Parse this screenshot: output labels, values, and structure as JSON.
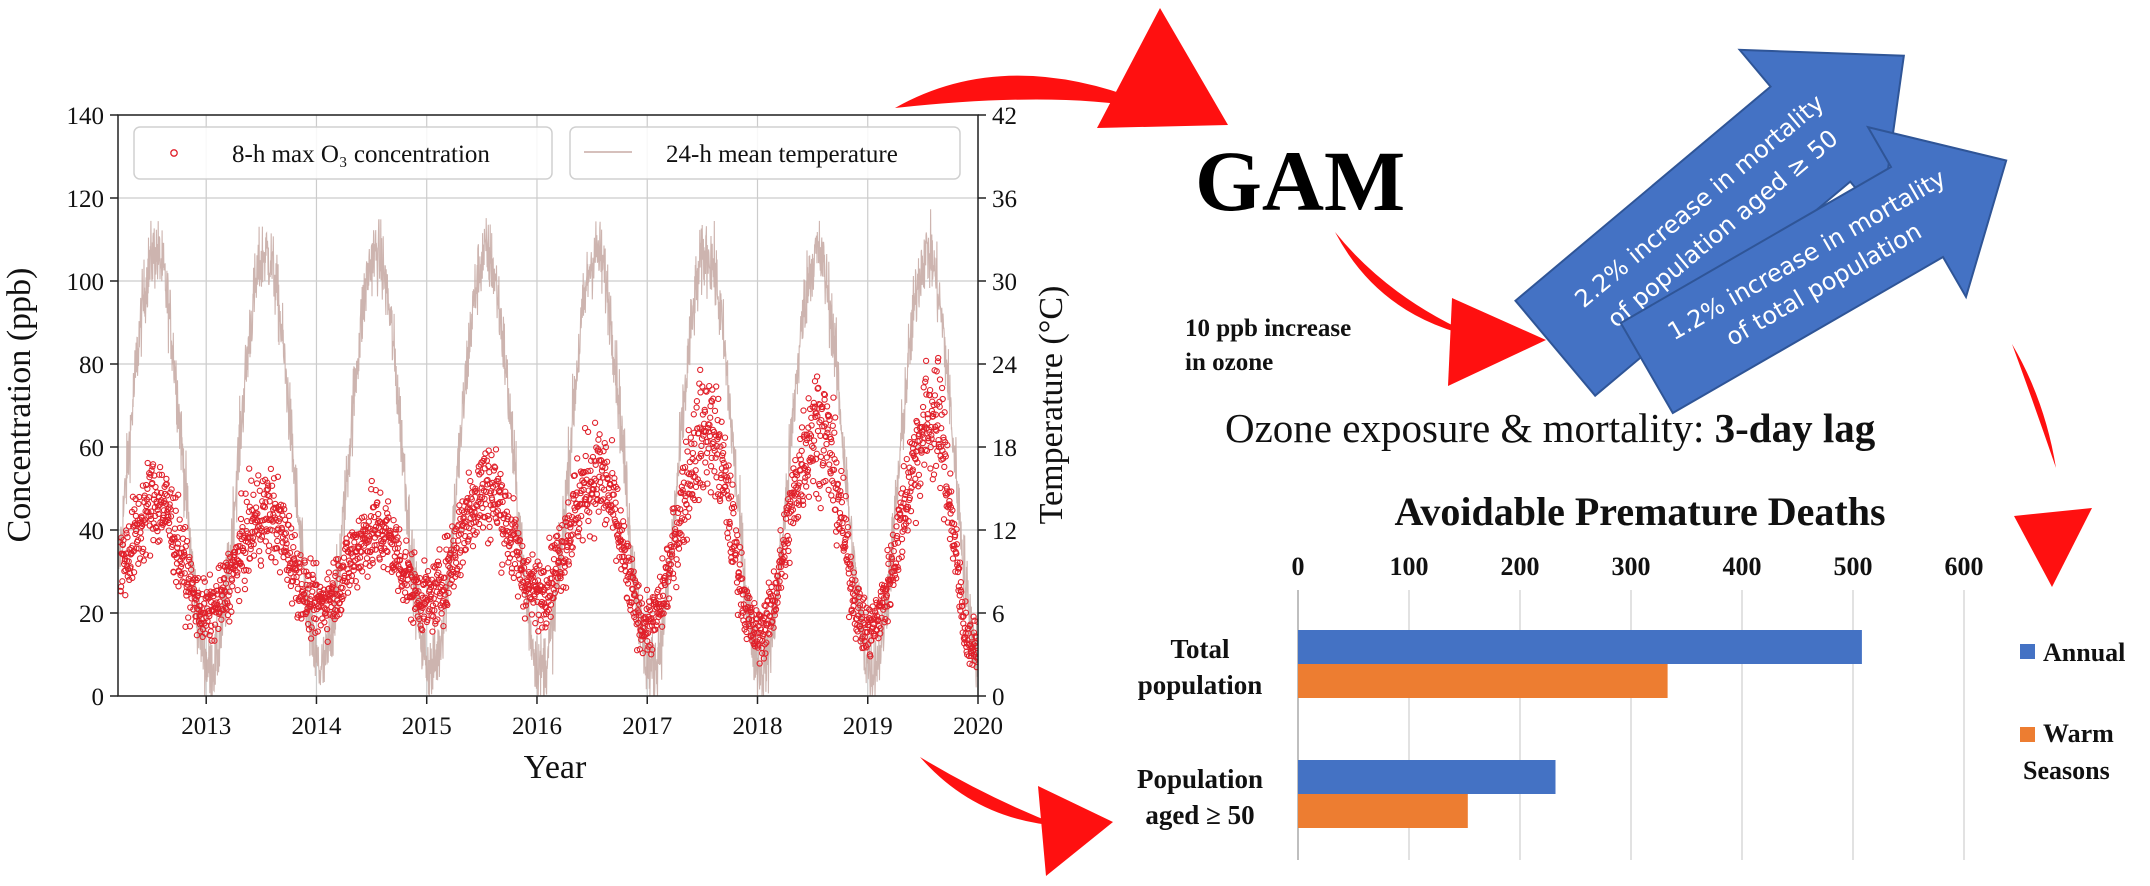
{
  "colors": {
    "ozone_marker": "#e0202a",
    "temperature_line": "#c8aca6",
    "arrow_red": "#ff1010",
    "arrow_blue": "#4472c4",
    "bar_annual": "#4472c4",
    "bar_warm": "#ed7d31",
    "grid": "#cccccc"
  },
  "gam": {
    "title": "GAM",
    "input_line1": "10 ppb increase",
    "input_line2": "in ozone",
    "arrow1_line1": "2.2% increase in mortality",
    "arrow1_line2": "of population aged ≥ 50",
    "arrow2_line1": "1.2%  increase in mortality",
    "arrow2_line2": "of total population",
    "lag_prefix": "Ozone exposure & mortality: ",
    "lag_bold": "3-day lag"
  },
  "chart_data": [
    {
      "type": "scatter",
      "title": "",
      "xlabel": "Year",
      "ylabel": "Concentration (ppb)",
      "y2label": "Temperature (°C)",
      "xlim": [
        2012.2,
        2020.0
      ],
      "ylim": [
        0,
        140
      ],
      "y2lim": [
        0,
        42
      ],
      "x_ticks": [
        "2013",
        "2014",
        "2015",
        "2016",
        "2017",
        "2018",
        "2019",
        "2020"
      ],
      "y_ticks": [
        "0",
        "20",
        "40",
        "60",
        "80",
        "100",
        "120",
        "140"
      ],
      "y2_ticks": [
        "0",
        "6",
        "12",
        "18",
        "24",
        "30",
        "36",
        "42"
      ],
      "grid": true,
      "legend": {
        "placement": "top",
        "ozone_label": "8-h max O₃ concentration",
        "temp_label": "24-h mean temperature"
      },
      "series": [
        {
          "name": "8-h max O₃ concentration",
          "kind": "scatter",
          "axis": "left",
          "approximate_daily_pattern": true,
          "annual_peaks": [
            [
              2012.55,
              47
            ],
            [
              2013.55,
              44
            ],
            [
              2014.55,
              40
            ],
            [
              2015.55,
              50
            ],
            [
              2016.55,
              53
            ],
            [
              2017.55,
              64
            ],
            [
              2018.55,
              65
            ],
            [
              2019.6,
              67
            ]
          ],
          "annual_troughs": [
            [
              2013.0,
              20
            ],
            [
              2014.0,
              22
            ],
            [
              2015.0,
              23
            ],
            [
              2016.0,
              25
            ],
            [
              2017.0,
              17
            ],
            [
              2018.0,
              15
            ],
            [
              2019.0,
              16
            ],
            [
              2019.95,
              12
            ]
          ]
        },
        {
          "name": "24-h mean temperature",
          "kind": "line",
          "axis": "right",
          "approximate_daily_pattern": true,
          "summer_max": 35,
          "winter_min": 1
        }
      ]
    },
    {
      "type": "bar",
      "orientation": "horizontal",
      "title": "Avoidable Premature Deaths",
      "xlim": [
        0,
        600
      ],
      "x_ticks": [
        "0",
        "100",
        "200",
        "300",
        "400",
        "500",
        "600"
      ],
      "categories": [
        {
          "line1": "Total",
          "line2": "population"
        },
        {
          "line1": "Population",
          "line2": "aged ≥ 50"
        }
      ],
      "series": [
        {
          "name": "Annual",
          "values": [
            508,
            232
          ]
        },
        {
          "name": "Warm Seasons",
          "values": [
            333,
            153
          ]
        }
      ],
      "legend": {
        "placement": "right",
        "annual": "Annual",
        "warm_line1": "Warm",
        "warm_line2": "Seasons"
      },
      "grid": true
    }
  ]
}
